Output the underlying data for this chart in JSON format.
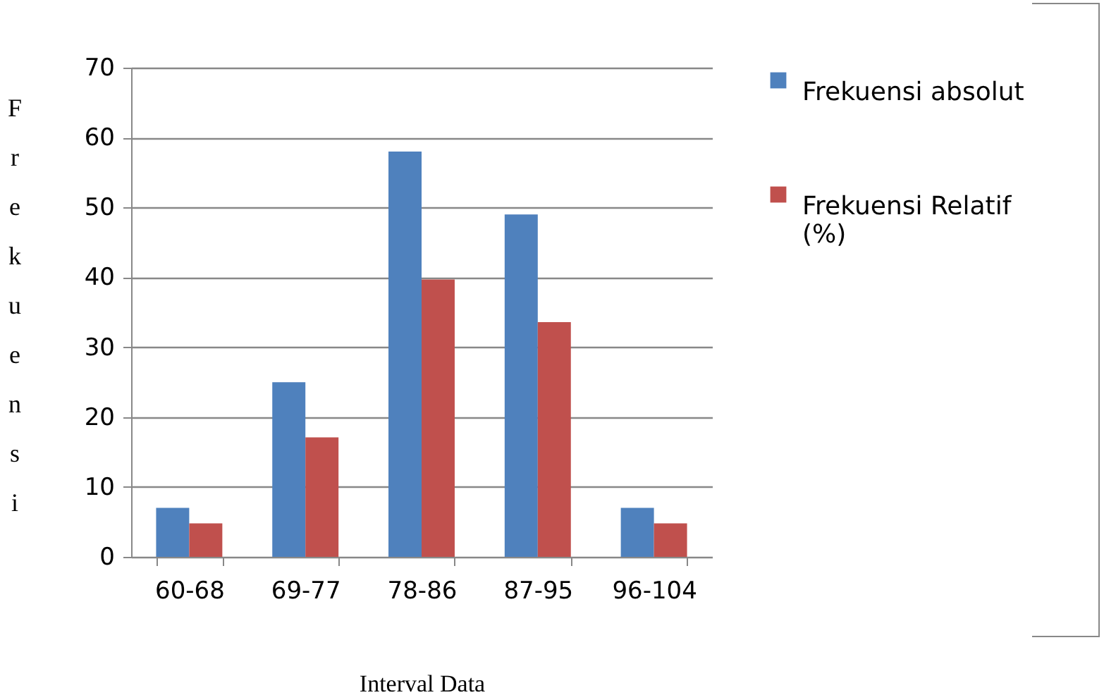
{
  "chart_data": {
    "type": "bar",
    "xlabel": "Interval Data",
    "ylabel": "Frekuensi",
    "categories": [
      "60-68",
      "69-77",
      "78-86",
      "87-95",
      "96-104"
    ],
    "series": [
      {
        "name": "Frekuensi absolut",
        "color": "#4f81bd",
        "values": [
          7,
          25,
          58,
          49,
          7
        ]
      },
      {
        "name": "Frekuensi Relatif (%)",
        "color": "#c0504d",
        "values": [
          4.8,
          17.1,
          39.7,
          33.6,
          4.8
        ]
      }
    ],
    "ylim": [
      0,
      70
    ],
    "yticks": [
      0,
      10,
      20,
      30,
      40,
      50,
      60,
      70
    ],
    "grid": "y",
    "legend": "right"
  }
}
